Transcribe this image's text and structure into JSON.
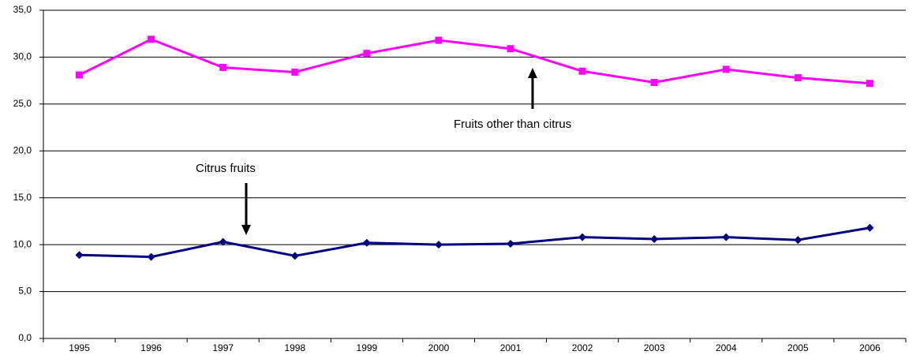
{
  "chart_data": {
    "type": "line",
    "categories": [
      "1995",
      "1996",
      "1997",
      "1998",
      "1999",
      "2000",
      "2001",
      "2002",
      "2003",
      "2004",
      "2005",
      "2006"
    ],
    "series": [
      {
        "name": "Fruits other than citrus",
        "color": "#ff00ff",
        "marker": "square",
        "values": [
          28.1,
          31.9,
          28.9,
          28.4,
          30.4,
          31.8,
          30.9,
          28.5,
          27.3,
          28.7,
          27.8,
          27.2
        ]
      },
      {
        "name": "Citrus fruits",
        "color": "#000080",
        "marker": "diamond",
        "values": [
          8.9,
          8.7,
          10.3,
          8.8,
          10.2,
          10.0,
          10.1,
          10.8,
          10.6,
          10.8,
          10.5,
          11.8
        ]
      }
    ],
    "ylim": [
      0,
      35
    ],
    "yticks": [
      {
        "value": 0,
        "label": "0,0"
      },
      {
        "value": 5,
        "label": "5,0"
      },
      {
        "value": 10,
        "label": "10,0"
      },
      {
        "value": 15,
        "label": "15,0"
      },
      {
        "value": 20,
        "label": "20,0"
      },
      {
        "value": 25,
        "label": "25,0"
      },
      {
        "value": 30,
        "label": "30,0"
      },
      {
        "value": 35,
        "label": "35,0"
      }
    ],
    "grid": true
  }
}
